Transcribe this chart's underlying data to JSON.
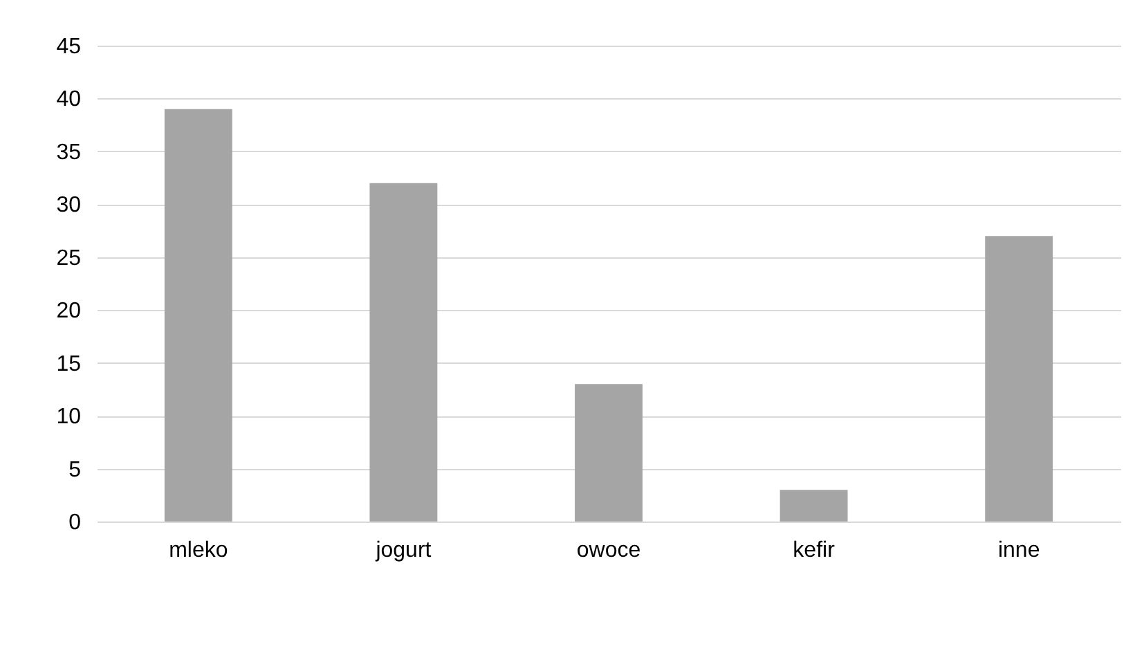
{
  "chart_data": {
    "type": "bar",
    "categories": [
      "mleko",
      "jogurt",
      "owoce",
      "kefir",
      "inne"
    ],
    "values": [
      39,
      32,
      13,
      3,
      27
    ],
    "color": "#a5a5a6",
    "ylim": [
      0,
      45
    ],
    "yticks": [
      0,
      5,
      10,
      15,
      20,
      25,
      30,
      35,
      40,
      45
    ],
    "grid": "y"
  }
}
